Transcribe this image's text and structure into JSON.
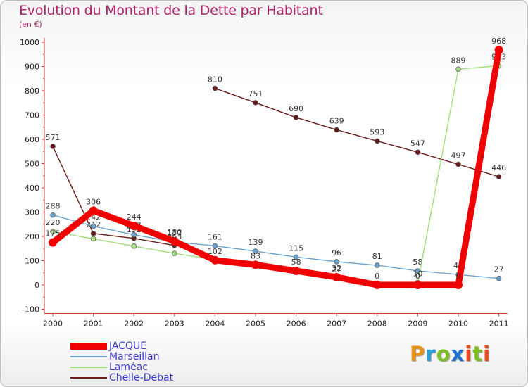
{
  "title": "Evolution du Montant de la Dette par Habitant",
  "unit_label": "(en €)",
  "brand": {
    "text": "Proxiti",
    "letter_colors": [
      "#e6931a",
      "#27a0d9",
      "#7bbf22",
      "#1e6fd0",
      "#e64a19",
      "#7bbf22",
      "#e64a19"
    ]
  },
  "chart_data": {
    "type": "line",
    "title": "Evolution du Montant de la Dette par Habitant",
    "xlabel": "",
    "ylabel": "(en €)",
    "x": [
      "2000",
      "2001",
      "2002",
      "2003",
      "2004",
      "2005",
      "2006",
      "2007",
      "2008",
      "2009",
      "2010",
      "2011"
    ],
    "ylim": [
      -100,
      1000
    ],
    "yticks": [
      "-100",
      "0",
      "100",
      "200",
      "300",
      "400",
      "500",
      "600",
      "700",
      "800",
      "900",
      "1000"
    ],
    "grid": false,
    "legend_position": "bottom-left",
    "series": [
      {
        "name": "Chelle-Debat",
        "color": "#6a1c1c",
        "values": [
          571,
          212,
          192,
          163,
          null,
          null,
          null,
          null,
          null,
          null,
          null,
          null
        ],
        "labels": [
          "571",
          "212",
          "192",
          "163",
          null,
          null,
          null,
          null,
          null,
          null,
          null,
          null
        ]
      },
      {
        "name": "Chelle-Debat",
        "color": "#6a1c1c",
        "values": [
          null,
          null,
          null,
          null,
          810,
          751,
          690,
          639,
          593,
          547,
          497,
          446
        ],
        "labels": [
          null,
          null,
          null,
          null,
          "810",
          "751",
          "690",
          "639",
          "593",
          "547",
          "497",
          "446"
        ]
      },
      {
        "name": "Marseillan",
        "color": "#6ba3cf",
        "values": [
          288,
          242,
          207,
          177,
          161,
          139,
          115,
          96,
          81,
          58,
          43,
          27
        ],
        "labels": [
          "288",
          "242",
          "207",
          "177",
          "161",
          "139",
          "115",
          "96",
          "81",
          "58",
          "43",
          "27"
        ]
      },
      {
        "name": "Laméac",
        "color": "#a3dc7c",
        "values": [
          220,
          190,
          160,
          130,
          105,
          80,
          56,
          27,
          0,
          10,
          889,
          903
        ],
        "labels": [
          "220",
          "",
          "",
          "",
          "",
          "",
          "",
          "27",
          "",
          "10",
          "889",
          "903"
        ]
      },
      {
        "name": "JACQUE",
        "color": "#f00000",
        "values": [
          175,
          306,
          244,
          180,
          102,
          83,
          58,
          32,
          0,
          0,
          0,
          968
        ],
        "labels": [
          "175",
          "306",
          "244",
          "180",
          "102",
          "83",
          "58",
          "32",
          "0",
          "0",
          "0",
          "968"
        ]
      }
    ],
    "legend": [
      {
        "name": "JACQUE",
        "color": "#f00000"
      },
      {
        "name": "Marseillan",
        "color": "#6ba3cf"
      },
      {
        "name": "Laméac",
        "color": "#a3dc7c"
      },
      {
        "name": "Chelle-Debat",
        "color": "#6a1c1c"
      }
    ]
  }
}
